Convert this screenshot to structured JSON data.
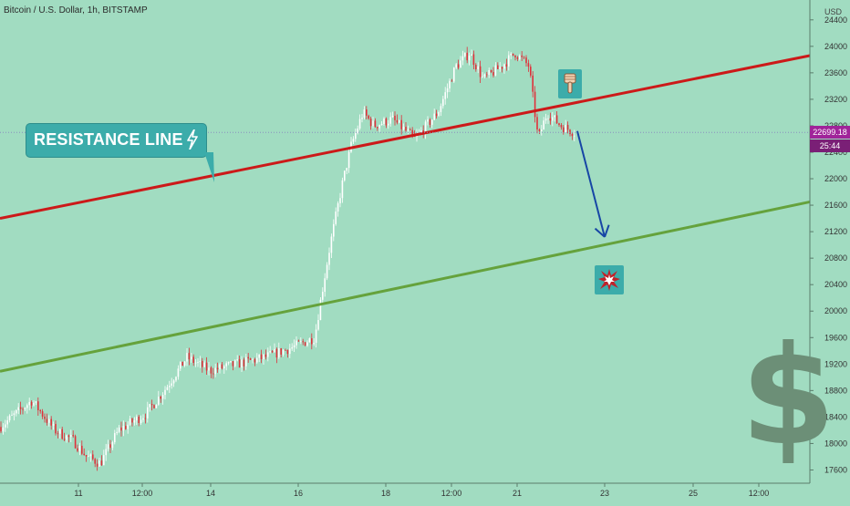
{
  "header": {
    "title": "Bitcoin / U.S. Dollar, 1h, BITSTAMP"
  },
  "annotations": {
    "resistance_label": "RESISTANCE LINE",
    "pointing_icon": "pointing-down-hand-icon",
    "target_icon": "explosion-icon",
    "dollar_symbol": "$"
  },
  "price_tags": {
    "last_price": "22699.18",
    "countdown": "25:44"
  },
  "colors": {
    "background": "#a1dcc1",
    "resistance": "#cc1919",
    "support": "#65a23c",
    "arrow": "#1746a5",
    "candle_up": "#ffffff",
    "candle_down": "#e0303a",
    "callout": "#3cacaa",
    "price_tag": "#a0249a"
  },
  "chart_data": {
    "type": "candlestick",
    "title": "Bitcoin / U.S. Dollar, 1h, BITSTAMP",
    "ylabel": "USD",
    "ylim": [
      17400,
      24700
    ],
    "y_ticks": [
      17600,
      18000,
      18400,
      18800,
      19200,
      19600,
      20000,
      20400,
      20800,
      21200,
      21600,
      22000,
      22400,
      22800,
      23200,
      23600,
      24000,
      24400
    ],
    "x_tick_labels": [
      "11",
      "12:00",
      "14",
      "16",
      "18",
      "12:00",
      "21",
      "23",
      "25",
      "12:00"
    ],
    "current_price": 22699.18,
    "price_path": [
      {
        "x": 0,
        "y": 18250
      },
      {
        "x": 35,
        "y": 18650
      },
      {
        "x": 60,
        "y": 18200
      },
      {
        "x": 80,
        "y": 18050
      },
      {
        "x": 95,
        "y": 17800
      },
      {
        "x": 110,
        "y": 17700
      },
      {
        "x": 130,
        "y": 18200
      },
      {
        "x": 160,
        "y": 18450
      },
      {
        "x": 180,
        "y": 18800
      },
      {
        "x": 205,
        "y": 19300
      },
      {
        "x": 230,
        "y": 19100
      },
      {
        "x": 260,
        "y": 19200
      },
      {
        "x": 290,
        "y": 19300
      },
      {
        "x": 320,
        "y": 19450
      },
      {
        "x": 345,
        "y": 19600
      },
      {
        "x": 352,
        "y": 20200
      },
      {
        "x": 362,
        "y": 21000
      },
      {
        "x": 375,
        "y": 21900
      },
      {
        "x": 385,
        "y": 22500
      },
      {
        "x": 398,
        "y": 23000
      },
      {
        "x": 410,
        "y": 22800
      },
      {
        "x": 430,
        "y": 22900
      },
      {
        "x": 455,
        "y": 22600
      },
      {
        "x": 480,
        "y": 23000
      },
      {
        "x": 500,
        "y": 23700
      },
      {
        "x": 515,
        "y": 23900
      },
      {
        "x": 530,
        "y": 23500
      },
      {
        "x": 550,
        "y": 23700
      },
      {
        "x": 565,
        "y": 23900
      },
      {
        "x": 580,
        "y": 23700
      },
      {
        "x": 590,
        "y": 22600
      },
      {
        "x": 600,
        "y": 23000
      },
      {
        "x": 615,
        "y": 22800
      },
      {
        "x": 630,
        "y": 22700
      }
    ],
    "lines": [
      {
        "name": "RESISTANCE LINE",
        "from": {
          "x": 0,
          "y": 21400
        },
        "to": {
          "x": 888,
          "y": 23860
        }
      },
      {
        "name": "",
        "from": {
          "x": 0,
          "y": 19090
        },
        "to": {
          "x": 888,
          "y": 21650
        }
      }
    ],
    "arrow": {
      "from": {
        "x": 633,
        "y": 22720
      },
      "to": {
        "x": 663,
        "y": 21120
      }
    },
    "grid": false,
    "legend": "none"
  }
}
